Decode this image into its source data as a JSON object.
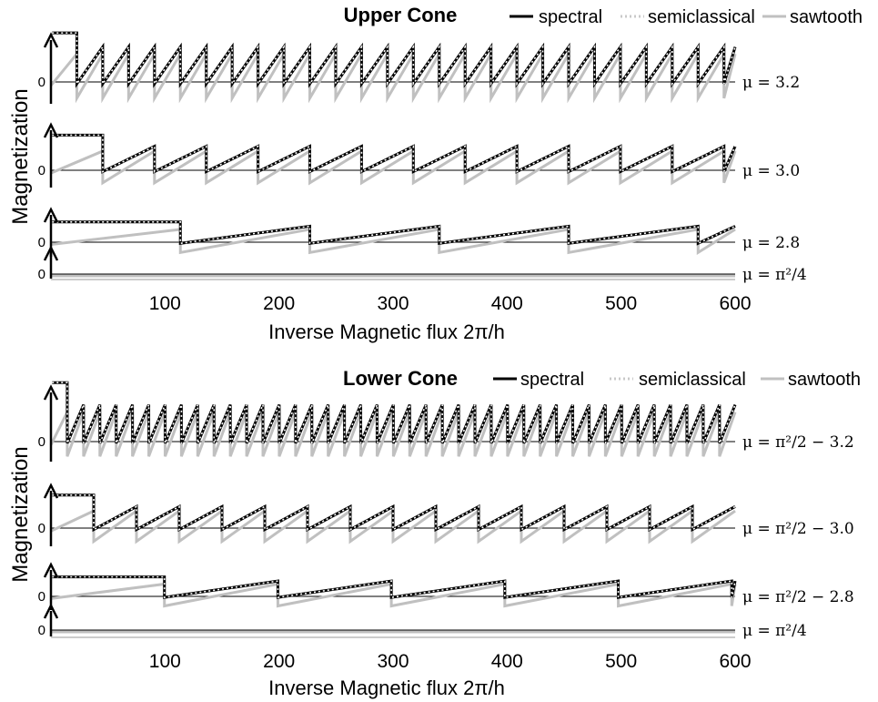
{
  "chart_data": [
    {
      "type": "line",
      "title": "Upper Cone",
      "xlabel": "Inverse Magnetic flux 2π/h",
      "ylabel": "Magnetization",
      "xlim": [
        0,
        600
      ],
      "xticks": [
        "100",
        "200",
        "300",
        "400",
        "500",
        "600"
      ],
      "zero_label": "0",
      "legend_position": "top-right",
      "legend": [
        {
          "name": "spectral",
          "color": "#000000",
          "style": "solid"
        },
        {
          "name": "semiclassical",
          "color": "#c8c8c8",
          "style": "dotted"
        },
        {
          "name": "sawtooth",
          "color": "#c0c0c0",
          "style": "solid"
        }
      ],
      "traces": [
        {
          "mu_label": "μ = 3.2",
          "period": 22.7,
          "first_jump": 22.7,
          "amplitude": 1.0,
          "first_level": 1.05
        },
        {
          "mu_label": "μ = 3.0",
          "period": 45.4,
          "first_jump": 45.4,
          "amplitude": 1.0,
          "first_level": 1.1
        },
        {
          "mu_label": "μ = 2.8",
          "period": 113.5,
          "first_jump": 113.5,
          "amplitude": 1.0,
          "first_level": 0.95
        },
        {
          "mu_label": "μ = π²/4",
          "period": 0,
          "first_jump": 0,
          "amplitude": 0,
          "first_level": 0
        }
      ]
    },
    {
      "type": "line",
      "title": "Lower Cone",
      "xlabel": "Inverse Magnetic flux 2π/h",
      "ylabel": "Magnetization",
      "xlim": [
        0,
        600
      ],
      "xticks": [
        "100",
        "200",
        "300",
        "400",
        "500",
        "600"
      ],
      "zero_label": "0",
      "legend_position": "top-right",
      "legend": [
        {
          "name": "spectral",
          "color": "#000000",
          "style": "solid"
        },
        {
          "name": "semiclassical",
          "color": "#c8c8c8",
          "style": "dotted"
        },
        {
          "name": "sawtooth",
          "color": "#c0c0c0",
          "style": "solid"
        }
      ],
      "traces": [
        {
          "mu_label": "μ = π²/2 − 3.2",
          "period": 14.3,
          "first_jump": 14.3,
          "amplitude": 1.0,
          "first_level": 1.2
        },
        {
          "mu_label": "μ = π²/2 − 3.0",
          "period": 37.5,
          "first_jump": 37.5,
          "amplitude": 1.0,
          "first_level": 1.15
        },
        {
          "mu_label": "μ = π²/2 − 2.8",
          "period": 99.5,
          "first_jump": 99.5,
          "amplitude": 1.0,
          "first_level": 0.95
        },
        {
          "mu_label": "μ = π²/4",
          "period": 0,
          "first_jump": 0,
          "amplitude": 0,
          "first_level": 0
        }
      ]
    }
  ]
}
